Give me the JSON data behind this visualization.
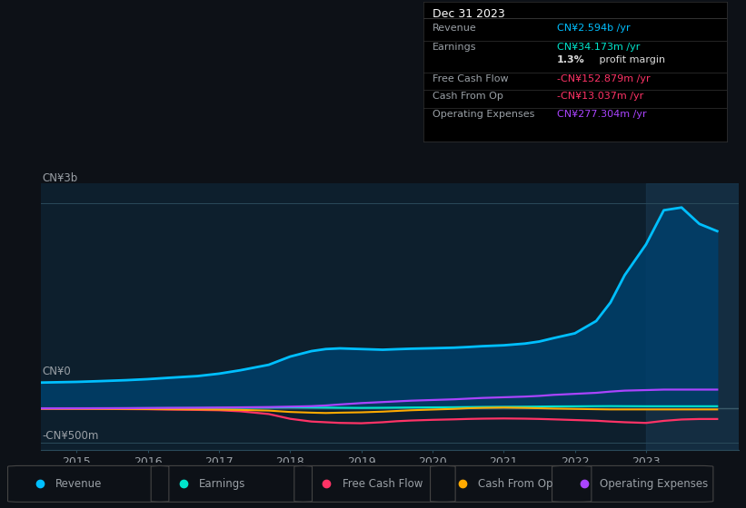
{
  "background_color": "#0d1117",
  "plot_bg_color": "#0d1f2d",
  "grid_color": "#1e3a4a",
  "text_color": "#9aa0a6",
  "white": "#ffffff",
  "years": [
    2014.5,
    2015.0,
    2015.3,
    2015.7,
    2016.0,
    2016.3,
    2016.7,
    2017.0,
    2017.3,
    2017.7,
    2018.0,
    2018.3,
    2018.5,
    2018.7,
    2019.0,
    2019.3,
    2019.5,
    2019.7,
    2020.0,
    2020.3,
    2020.5,
    2020.7,
    2021.0,
    2021.3,
    2021.5,
    2021.7,
    2022.0,
    2022.3,
    2022.5,
    2022.7,
    2023.0,
    2023.25,
    2023.5,
    2023.75,
    2024.0
  ],
  "revenue": [
    380,
    390,
    400,
    415,
    430,
    450,
    475,
    510,
    560,
    640,
    760,
    840,
    870,
    880,
    870,
    860,
    868,
    875,
    882,
    890,
    900,
    912,
    925,
    950,
    980,
    1030,
    1100,
    1280,
    1550,
    1950,
    2400,
    2900,
    2940,
    2700,
    2594
  ],
  "earnings": [
    2,
    3,
    4,
    5,
    6,
    7,
    8,
    10,
    12,
    15,
    18,
    16,
    14,
    12,
    10,
    12,
    14,
    16,
    18,
    20,
    22,
    24,
    26,
    28,
    30,
    32,
    33,
    35,
    36,
    35,
    34,
    34,
    34,
    34,
    34
  ],
  "free_cash_flow": [
    -3,
    -4,
    -5,
    -8,
    -10,
    -15,
    -20,
    -25,
    -40,
    -80,
    -150,
    -190,
    -200,
    -210,
    -215,
    -200,
    -185,
    -175,
    -165,
    -158,
    -152,
    -148,
    -145,
    -148,
    -152,
    -158,
    -168,
    -178,
    -190,
    -200,
    -210,
    -180,
    -160,
    -153,
    -153
  ],
  "cash_from_op": [
    -1,
    -2,
    -3,
    -5,
    -8,
    -10,
    -12,
    -15,
    -20,
    -30,
    -50,
    -60,
    -65,
    -60,
    -55,
    -45,
    -35,
    -25,
    -15,
    -5,
    5,
    10,
    15,
    10,
    5,
    0,
    -5,
    -10,
    -13,
    -13,
    -13,
    -13,
    -13,
    -13,
    -13
  ],
  "operating_expenses": [
    3,
    4,
    5,
    6,
    8,
    10,
    12,
    15,
    18,
    22,
    28,
    35,
    45,
    60,
    80,
    95,
    105,
    115,
    125,
    135,
    145,
    155,
    165,
    175,
    185,
    200,
    215,
    230,
    248,
    262,
    270,
    277,
    277,
    277,
    277
  ],
  "revenue_color": "#00bfff",
  "earnings_color": "#00e5cc",
  "free_cash_flow_color": "#ff3366",
  "cash_from_op_color": "#ffaa00",
  "operating_expenses_color": "#aa44ff",
  "xlim": [
    2014.5,
    2024.3
  ],
  "ylim": [
    -600,
    3300
  ],
  "xtick_years": [
    2015,
    2016,
    2017,
    2018,
    2019,
    2020,
    2021,
    2022,
    2023
  ],
  "info_box": {
    "title": "Dec 31 2023",
    "rows": [
      {
        "label": "Revenue",
        "value": "CN¥2.594b /yr",
        "value_color": "#00bfff"
      },
      {
        "label": "Earnings",
        "value": "CN¥34.173m /yr",
        "value_color": "#00e5cc"
      },
      {
        "label": "",
        "value": "1.3% profit margin",
        "value_color": "#dddddd"
      },
      {
        "label": "Free Cash Flow",
        "value": "-CN¥152.879m /yr",
        "value_color": "#ff3366"
      },
      {
        "label": "Cash From Op",
        "value": "-CN¥13.037m /yr",
        "value_color": "#ff3366"
      },
      {
        "label": "Operating Expenses",
        "value": "CN¥277.304m /yr",
        "value_color": "#aa44ff"
      }
    ]
  },
  "legend_items": [
    {
      "label": "Revenue",
      "color": "#00bfff"
    },
    {
      "label": "Earnings",
      "color": "#00e5cc"
    },
    {
      "label": "Free Cash Flow",
      "color": "#ff3366"
    },
    {
      "label": "Cash From Op",
      "color": "#ffaa00"
    },
    {
      "label": "Operating Expenses",
      "color": "#aa44ff"
    }
  ]
}
